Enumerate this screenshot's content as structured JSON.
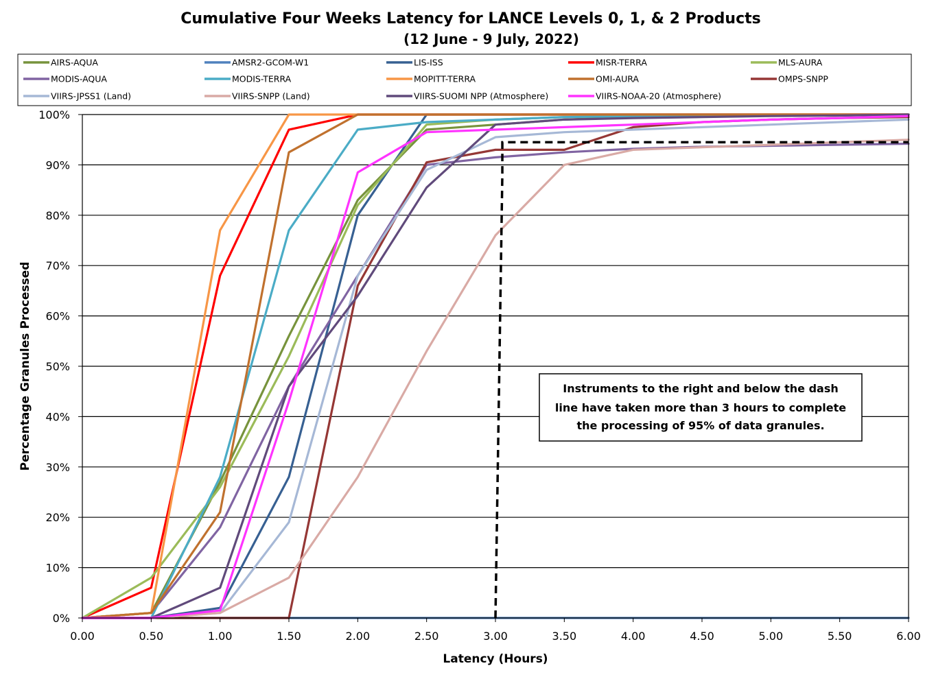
{
  "chart_data": {
    "type": "line",
    "title": "Cumulative Four Weeks Latency  for LANCE Levels 0, 1, & 2 Products",
    "subtitle": "(12  June   -  9  July,  2022)",
    "xlabel": "Latency (Hours)",
    "ylabel": "Percentage Granules Processed",
    "xlim": [
      0,
      6
    ],
    "ylim": [
      0,
      100
    ],
    "x_ticks": [
      "0.00",
      "0.50",
      "1.00",
      "1.50",
      "2.00",
      "2.50",
      "3.00",
      "3.50",
      "4.00",
      "4.50",
      "5.00",
      "5.50",
      "6.00"
    ],
    "y_ticks": [
      "0%",
      "10%",
      "20%",
      "30%",
      "40%",
      "50%",
      "60%",
      "70%",
      "80%",
      "90%",
      "100%"
    ],
    "grid": "horizontal",
    "legend_position": "top",
    "x": [
      0,
      0.5,
      1.0,
      1.5,
      2.0,
      2.5,
      3.0,
      3.5,
      4.0,
      4.5,
      5.0,
      5.5,
      6.0
    ],
    "series": [
      {
        "name": "AIRS-AQUA",
        "color": "#77933c",
        "values": [
          0,
          1,
          27,
          56,
          83,
          97,
          98,
          99,
          99.5,
          99.7,
          99.8,
          99.9,
          100
        ]
      },
      {
        "name": "AMSR2-GCOM-W1",
        "color": "#4f81bd",
        "values": [
          0,
          0,
          0,
          0,
          0,
          0,
          0,
          0,
          0,
          0,
          0,
          0,
          0
        ]
      },
      {
        "name": "LIS-ISS",
        "color": "#376092",
        "values": [
          0,
          0,
          2,
          28,
          80,
          100,
          100,
          100,
          100,
          100,
          100,
          100,
          100
        ]
      },
      {
        "name": "MISR-TERRA",
        "color": "#ff0000",
        "values": [
          0,
          6,
          68,
          97,
          100,
          100,
          100,
          100,
          100,
          100,
          100,
          100,
          100
        ]
      },
      {
        "name": "MLS-AURA",
        "color": "#9bbb59",
        "values": [
          0,
          8,
          26,
          52,
          82,
          98,
          99,
          99.5,
          99.7,
          99.8,
          99.9,
          99.9,
          100
        ]
      },
      {
        "name": "MODIS-AQUA",
        "color": "#8064a2",
        "values": [
          0,
          1,
          18,
          46,
          68,
          90,
          91.5,
          92.5,
          93.2,
          93.6,
          93.8,
          94,
          94.2
        ]
      },
      {
        "name": "MODIS-TERRA",
        "color": "#4bacc6",
        "values": [
          0,
          0,
          28,
          77,
          97,
          98.5,
          99,
          99.5,
          99.7,
          99.8,
          99.9,
          99.9,
          100
        ]
      },
      {
        "name": "MOPITT-TERRA",
        "color": "#f79646",
        "values": [
          0,
          1,
          77,
          100,
          100,
          100,
          100,
          100,
          100,
          100,
          100,
          100,
          100
        ]
      },
      {
        "name": "OMI-AURA",
        "color": "#c0712e",
        "values": [
          0,
          1,
          21,
          92.5,
          100,
          100,
          100,
          100,
          100,
          100,
          100,
          100,
          100
        ]
      },
      {
        "name": "OMPS-SNPP",
        "color": "#953735",
        "values": [
          0,
          0,
          0,
          0,
          66,
          90.5,
          93,
          93,
          97.5,
          98.5,
          99,
          99.3,
          99.5
        ]
      },
      {
        "name": "VIIRS-JPSS1 (Land)",
        "color": "#a6b8d6",
        "values": [
          0,
          0,
          1,
          19,
          68,
          89,
          95.5,
          96.5,
          97,
          97.5,
          98,
          98.5,
          99
        ]
      },
      {
        "name": "VIIRS-SNPP (Land)",
        "color": "#d9aaa5",
        "values": [
          0,
          0,
          1,
          8,
          28,
          53,
          76,
          90,
          93,
          93.5,
          94,
          94.5,
          95
        ]
      },
      {
        "name": "VIIRS-SUOMI NPP (Atmosphere)",
        "color": "#604a7b",
        "values": [
          0,
          0,
          6,
          46,
          64,
          85.5,
          98,
          99,
          99.3,
          99.5,
          99.7,
          99.8,
          100
        ]
      },
      {
        "name": "VIIRS-NOAA-20 (Atmosphere)",
        "color": "#ff33ff",
        "values": [
          0,
          0,
          1.5,
          43,
          88.5,
          96.5,
          97,
          97.5,
          98,
          98.5,
          99,
          99.3,
          99.7
        ]
      }
    ],
    "threshold_line": {
      "x": [
        3.0,
        3.05,
        3.05,
        6.0
      ],
      "y": [
        0,
        88,
        94.5,
        94.5
      ],
      "style": "dashed",
      "color": "#000000"
    },
    "annotation": {
      "lines": [
        "Instruments to the right and below the dash",
        "line have taken more than 3 hours to complete",
        "the processing of 95% of data granules."
      ]
    }
  }
}
